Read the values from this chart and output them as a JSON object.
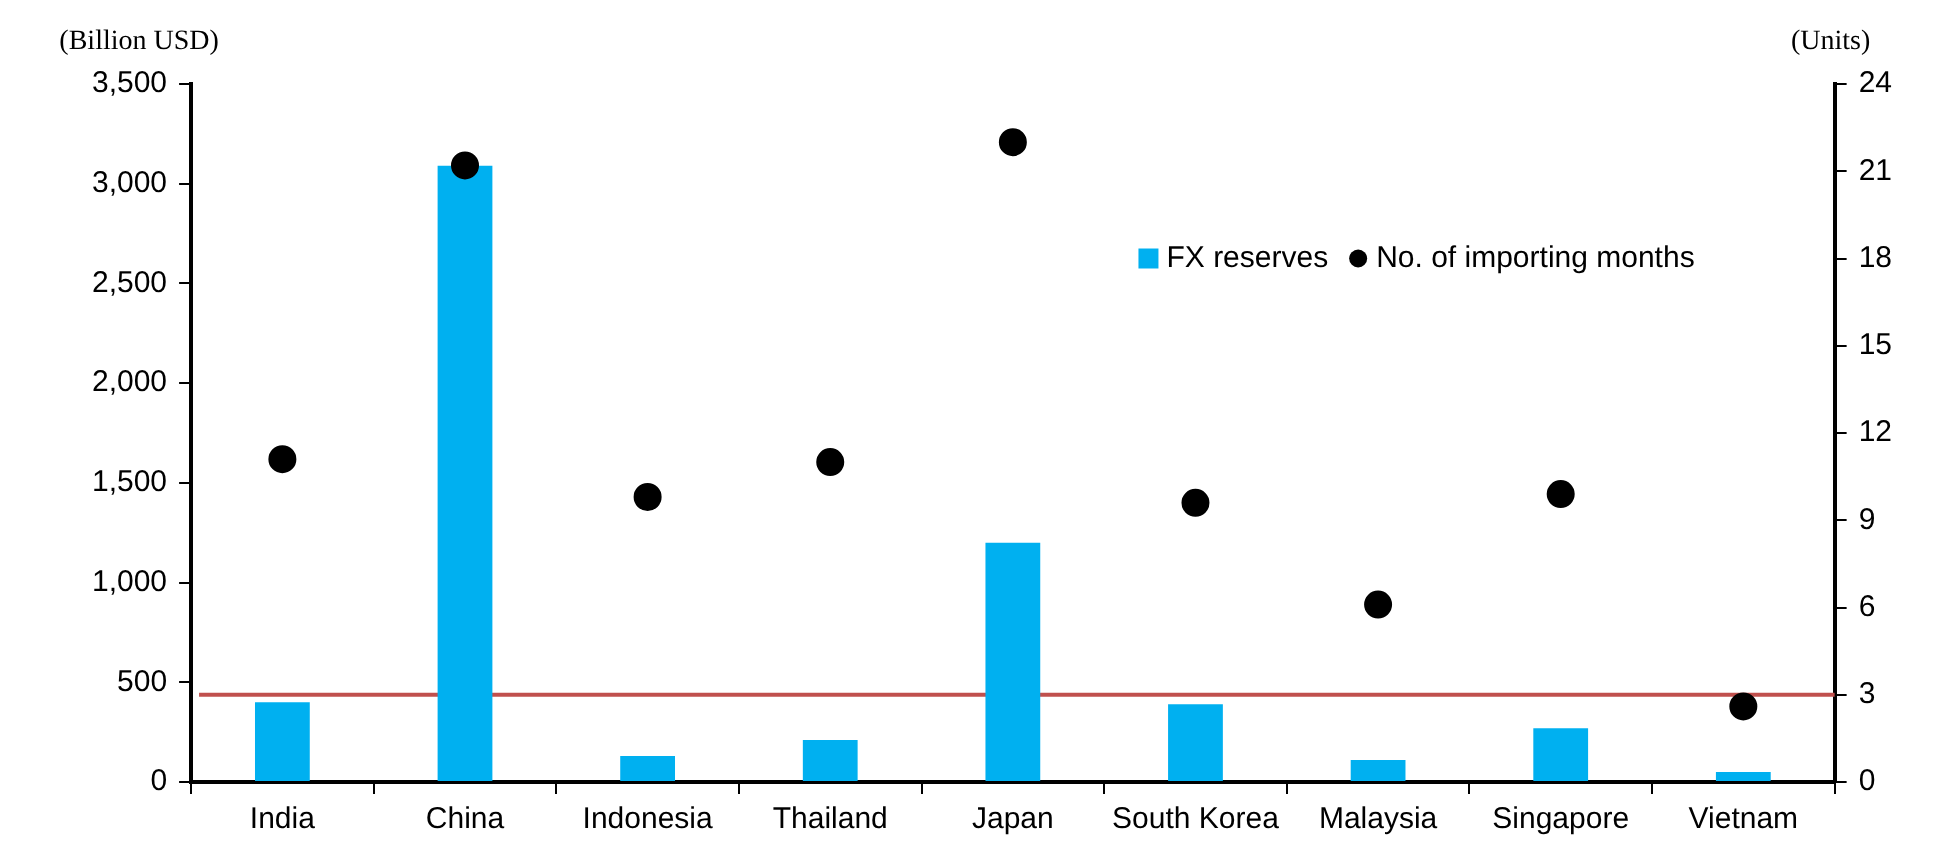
{
  "chart_data": {
    "type": "bar",
    "ylabel": "(Billion USD)",
    "y2label": "(Units)",
    "categories": [
      "India",
      "China",
      "Indonesia",
      "Thailand",
      "Japan",
      "South Korea",
      "Malaysia",
      "Singapore",
      "Vietnam"
    ],
    "series": [
      {
        "name": "FX reserves",
        "color": "#00b0f0",
        "values": [
          400,
          3090,
          130,
          210,
          1200,
          390,
          110,
          270,
          50
        ]
      },
      {
        "name": "No. of importing months",
        "type": "scatter",
        "axis": "y2",
        "color": "#000000",
        "marker": "circle",
        "values": [
          11.1,
          21.2,
          9.8,
          11.0,
          22.0,
          9.6,
          6.1,
          9.9,
          2.6
        ]
      }
    ],
    "ylim": [
      0,
      3500
    ],
    "yticks": [
      0,
      {
        "value": 500,
        "label": "500"
      },
      {
        "value": 1000,
        "label": "1,000"
      },
      {
        "value": 1500,
        "label": "1,500"
      },
      {
        "value": 2000,
        "label": "2,000"
      },
      {
        "value": 2500,
        "label": "2,500"
      },
      {
        "value": 3000,
        "label": "3,000"
      },
      {
        "value": 3500,
        "label": "3,500"
      }
    ],
    "y2lim": [
      0,
      24
    ],
    "y2ticks": [
      0,
      3,
      6,
      9,
      12,
      15,
      18,
      21,
      24
    ],
    "ref_lines": [
      {
        "axis": "y2",
        "value": 3,
        "color": "#c0504d"
      }
    ],
    "legend": "top right",
    "grid": false
  }
}
